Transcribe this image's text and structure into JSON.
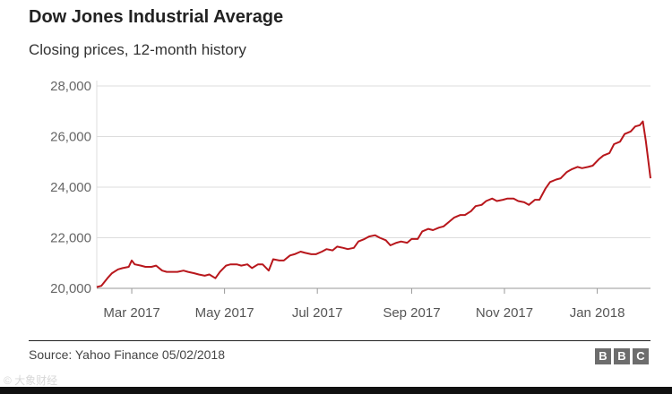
{
  "header": {
    "title": "Dow Jones Industrial Average",
    "subtitle": "Closing prices, 12-month history"
  },
  "footer": {
    "source": "Source: Yahoo Finance 05/02/2018",
    "logo": [
      "B",
      "B",
      "C"
    ]
  },
  "watermark": "© 大象财经",
  "colors": {
    "line": "#b8171c",
    "grid": "#dddddd",
    "axis": "#999999"
  },
  "chart_data": {
    "type": "line",
    "title": "Dow Jones Industrial Average",
    "subtitle": "Closing prices, 12-month history",
    "xlabel": "",
    "ylabel": "",
    "xlim": [
      "2017-02-06",
      "2018-02-05"
    ],
    "ylim": [
      20000,
      28000
    ],
    "yticks": [
      20000,
      22000,
      24000,
      26000,
      28000
    ],
    "ytick_labels": [
      "20,000",
      "22,000",
      "24,000",
      "26,000",
      "28,000"
    ],
    "xticks": [
      "2017-03-01",
      "2017-05-01",
      "2017-07-01",
      "2017-09-01",
      "2017-11-01",
      "2018-01-01"
    ],
    "xtick_labels": [
      "Mar 2017",
      "May 2017",
      "Jul 2017",
      "Sep 2017",
      "Nov 2017",
      "Jan 2018"
    ],
    "grid": true,
    "series": [
      {
        "x": [
          "2017-02-06",
          "2017-02-09",
          "2017-02-13",
          "2017-02-16",
          "2017-02-20",
          "2017-02-23",
          "2017-02-27",
          "2017-03-01",
          "2017-03-03",
          "2017-03-07",
          "2017-03-10",
          "2017-03-14",
          "2017-03-17",
          "2017-03-21",
          "2017-03-24",
          "2017-03-28",
          "2017-03-31",
          "2017-04-04",
          "2017-04-07",
          "2017-04-11",
          "2017-04-14",
          "2017-04-18",
          "2017-04-21",
          "2017-04-25",
          "2017-04-28",
          "2017-05-02",
          "2017-05-05",
          "2017-05-09",
          "2017-05-12",
          "2017-05-16",
          "2017-05-19",
          "2017-05-23",
          "2017-05-26",
          "2017-05-30",
          "2017-06-02",
          "2017-06-06",
          "2017-06-09",
          "2017-06-13",
          "2017-06-16",
          "2017-06-20",
          "2017-06-23",
          "2017-06-27",
          "2017-06-30",
          "2017-07-04",
          "2017-07-07",
          "2017-07-11",
          "2017-07-14",
          "2017-07-18",
          "2017-07-21",
          "2017-07-25",
          "2017-07-28",
          "2017-08-01",
          "2017-08-04",
          "2017-08-08",
          "2017-08-11",
          "2017-08-15",
          "2017-08-18",
          "2017-08-22",
          "2017-08-25",
          "2017-08-29",
          "2017-09-01",
          "2017-09-05",
          "2017-09-08",
          "2017-09-12",
          "2017-09-15",
          "2017-09-19",
          "2017-09-22",
          "2017-09-26",
          "2017-09-29",
          "2017-10-03",
          "2017-10-06",
          "2017-10-10",
          "2017-10-13",
          "2017-10-17",
          "2017-10-20",
          "2017-10-24",
          "2017-10-27",
          "2017-10-31",
          "2017-11-03",
          "2017-11-07",
          "2017-11-10",
          "2017-11-14",
          "2017-11-17",
          "2017-11-21",
          "2017-11-24",
          "2017-11-28",
          "2017-12-01",
          "2017-12-05",
          "2017-12-08",
          "2017-12-12",
          "2017-12-15",
          "2017-12-19",
          "2017-12-22",
          "2017-12-26",
          "2017-12-29",
          "2018-01-02",
          "2018-01-05",
          "2018-01-09",
          "2018-01-12",
          "2018-01-16",
          "2018-01-19",
          "2018-01-23",
          "2018-01-26",
          "2018-01-29",
          "2018-01-31",
          "2018-02-02",
          "2018-02-05"
        ],
        "y": [
          20050,
          20100,
          20400,
          20600,
          20750,
          20800,
          20850,
          21100,
          20950,
          20900,
          20850,
          20850,
          20900,
          20700,
          20650,
          20650,
          20650,
          20700,
          20650,
          20600,
          20550,
          20500,
          20550,
          20400,
          20650,
          20900,
          20950,
          20950,
          20900,
          20950,
          20800,
          20950,
          20950,
          20700,
          21150,
          21100,
          21100,
          21300,
          21350,
          21450,
          21400,
          21350,
          21350,
          21450,
          21550,
          21500,
          21650,
          21600,
          21550,
          21600,
          21850,
          21950,
          22050,
          22100,
          22000,
          21900,
          21700,
          21800,
          21850,
          21800,
          21950,
          21950,
          22250,
          22350,
          22300,
          22400,
          22450,
          22650,
          22800,
          22900,
          22900,
          23050,
          23250,
          23300,
          23450,
          23550,
          23450,
          23500,
          23550,
          23550,
          23450,
          23400,
          23300,
          23500,
          23500,
          23950,
          24200,
          24300,
          24350,
          24600,
          24700,
          24800,
          24750,
          24800,
          24850,
          25100,
          25250,
          25350,
          25700,
          25800,
          26100,
          26200,
          26400,
          26450,
          26600,
          25800,
          24350
        ]
      }
    ]
  }
}
